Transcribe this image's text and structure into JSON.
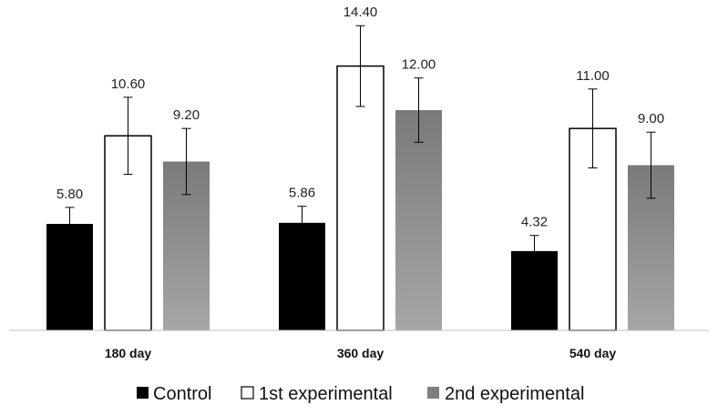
{
  "chart_data": {
    "type": "bar",
    "categories": [
      "180 day",
      "360 day",
      "540 day"
    ],
    "series": [
      {
        "name": "Control",
        "values": [
          5.8,
          5.86,
          4.32
        ],
        "errors": [
          0.9,
          0.9,
          0.85
        ],
        "color": "#000000"
      },
      {
        "name": "1st experimental",
        "values": [
          10.6,
          14.4,
          11.0
        ],
        "errors": [
          2.1,
          2.2,
          2.15
        ],
        "color": "#ffffff"
      },
      {
        "name": "2nd experimental",
        "values": [
          9.2,
          12.0,
          9.0
        ],
        "errors": [
          1.8,
          1.75,
          1.8
        ],
        "color": "#8c8c8c"
      }
    ],
    "value_labels": [
      [
        "5.80",
        "5.86",
        "4.32"
      ],
      [
        "10.60",
        "14.40",
        "11.00"
      ],
      [
        "9.20",
        "12.00",
        "9.00"
      ]
    ],
    "title": "",
    "xlabel": "",
    "ylabel": "",
    "ylim": [
      0,
      18
    ],
    "grid": false,
    "legend": "bottom"
  }
}
